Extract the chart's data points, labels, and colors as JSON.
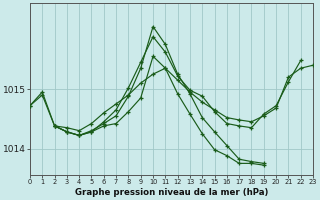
{
  "title": "Graphe pression niveau de la mer (hPa)",
  "bg_color": "#cceaea",
  "grid_color": "#a0c8c8",
  "line_color": "#1a5c1a",
  "xlim": [
    0,
    23
  ],
  "ylim": [
    1013.55,
    1016.45
  ],
  "yticks": [
    1014,
    1015
  ],
  "series": [
    {
      "x": [
        0,
        1,
        2,
        3,
        4,
        5,
        6,
        7,
        8,
        9,
        10,
        11,
        12,
        13,
        14,
        15,
        16,
        17,
        18,
        19,
        20,
        21,
        22,
        23
      ],
      "y": [
        1014.72,
        1014.95,
        1014.38,
        1014.35,
        1014.3,
        1014.42,
        1014.6,
        1014.75,
        1014.9,
        1015.1,
        1015.25,
        1015.35,
        1015.15,
        1014.95,
        1014.78,
        1014.65,
        1014.52,
        1014.48,
        1014.45,
        1014.55,
        1014.68,
        1015.2,
        1015.35,
        1015.4
      ]
    },
    {
      "x": [
        0,
        1,
        2,
        3,
        4,
        5,
        6,
        7,
        8,
        9,
        10,
        11,
        12,
        13,
        14,
        15,
        16,
        17,
        18,
        19
      ],
      "y": [
        1014.72,
        1014.9,
        1014.38,
        1014.28,
        1014.22,
        1014.3,
        1014.42,
        1014.55,
        1014.88,
        1015.35,
        1016.05,
        1015.75,
        1015.25,
        1014.92,
        1014.52,
        1014.28,
        1014.05,
        1013.82,
        1013.78,
        1013.75
      ]
    },
    {
      "x": [
        2,
        3,
        4,
        5,
        6,
        7,
        8,
        9,
        10,
        11,
        12,
        13,
        14,
        15,
        16,
        17,
        18,
        19
      ],
      "y": [
        1014.38,
        1014.28,
        1014.22,
        1014.28,
        1014.38,
        1014.42,
        1014.62,
        1014.85,
        1015.55,
        1015.35,
        1014.92,
        1014.58,
        1014.25,
        1013.98,
        1013.88,
        1013.75,
        1013.75,
        1013.72
      ]
    },
    {
      "x": [
        2,
        3,
        4,
        5,
        6,
        7,
        8,
        9,
        10,
        11,
        12,
        13,
        14,
        15,
        16,
        17,
        18,
        19,
        20,
        21,
        22
      ],
      "y": [
        1014.38,
        1014.28,
        1014.22,
        1014.28,
        1014.45,
        1014.65,
        1015.02,
        1015.45,
        1015.88,
        1015.62,
        1015.22,
        1014.98,
        1014.88,
        1014.62,
        1014.42,
        1014.38,
        1014.35,
        1014.58,
        1014.72,
        1015.12,
        1015.48
      ]
    }
  ]
}
